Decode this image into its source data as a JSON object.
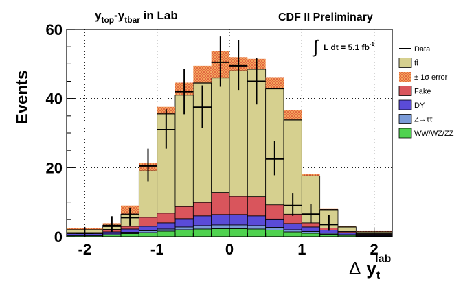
{
  "chart_data": {
    "type": "bar",
    "stacked": true,
    "title": "y_top-y_tbar in Lab",
    "title_parts": {
      "main1": "y",
      "sub1": "top",
      "dash": "-y",
      "sub2": "tbar",
      "rest": " in Lab"
    },
    "corner_label": "CDF II Preliminary",
    "luminosity": {
      "integral": "∫",
      "text": "L dt = 5.1 fb",
      "sup": "-1"
    },
    "ylabel": "Events",
    "xlabel": "Δ y_t^lab",
    "xlabel_parts": {
      "delta": "Δ",
      "y": "y",
      "sub": "t",
      "sup": "lab"
    },
    "xlim": [
      -2.25,
      2.25
    ],
    "ylim": [
      0,
      60
    ],
    "x_ticks": [
      -2,
      -1,
      0,
      1,
      2
    ],
    "x_tick_labels": [
      "-2",
      "-1",
      "0",
      "1",
      "2"
    ],
    "y_ticks": [
      0,
      20,
      40,
      60
    ],
    "y_tick_labels": [
      "0",
      "20",
      "40",
      "60"
    ],
    "grid": true,
    "legend_position": "right",
    "bin_edges": [
      -2.25,
      -1.75,
      -1.5,
      -1.25,
      -1.0,
      -0.75,
      -0.5,
      -0.25,
      0.0,
      0.25,
      0.5,
      0.75,
      1.0,
      1.25,
      1.5,
      1.75,
      2.25
    ],
    "legend": [
      {
        "label": "Data",
        "symbol": "line"
      },
      {
        "label": "tt̄",
        "symbol": "box"
      },
      {
        "label": "± 1σ error",
        "symbol": "hatch"
      },
      {
        "label": "Fake",
        "symbol": "box"
      },
      {
        "label": "DY",
        "symbol": "box"
      },
      {
        "label": "Z→ττ",
        "symbol": "box"
      },
      {
        "label": "WW/WZ/ZZ",
        "symbol": "box"
      }
    ],
    "colors": {
      "ttbar": "#d6d08f",
      "fake": "#d9555c",
      "dy": "#5a4bd8",
      "ztautau": "#7a9bd8",
      "diboson": "#4fd24f",
      "error_hatch": "#cc2222",
      "error_fill": "#f4a45c",
      "data": "#000000"
    },
    "series": [
      {
        "name": "WW/WZ/ZZ",
        "values": [
          0.3,
          0.5,
          0.9,
          1.2,
          1.6,
          2.0,
          2.2,
          2.3,
          2.3,
          2.2,
          1.9,
          1.4,
          1.0,
          0.7,
          0.4,
          0.2
        ]
      },
      {
        "name": "Z→ττ",
        "values": [
          0.2,
          0.3,
          0.4,
          0.5,
          0.6,
          0.8,
          1.0,
          1.1,
          1.1,
          1.0,
          0.8,
          0.6,
          0.5,
          0.3,
          0.2,
          0.1
        ]
      },
      {
        "name": "DY",
        "values": [
          0.4,
          0.6,
          0.9,
          1.3,
          1.8,
          2.4,
          2.8,
          3.0,
          3.0,
          2.8,
          2.4,
          1.8,
          1.3,
          0.9,
          0.6,
          0.4
        ]
      },
      {
        "name": "Fake",
        "values": [
          0.3,
          0.7,
          0.8,
          2.6,
          2.8,
          3.5,
          3.9,
          6.4,
          5.3,
          5.6,
          4.1,
          2.7,
          1.2,
          0.6,
          0.3,
          0.2
        ]
      },
      {
        "name": "tt̄",
        "values": [
          0.8,
          1.2,
          3.5,
          13.4,
          28.8,
          32.3,
          34.6,
          33.2,
          36.3,
          36.9,
          33.6,
          27.3,
          13.6,
          5.3,
          1.3,
          0.5
        ]
      }
    ],
    "error_band": {
      "lower": [
        2.0,
        3.3,
        6.5,
        19.0,
        35.6,
        41.0,
        44.5,
        46.0,
        48.0,
        48.5,
        42.8,
        33.8,
        17.6,
        7.8,
        2.8,
        1.4
      ],
      "upper": [
        2.5,
        3.9,
        9.0,
        21.3,
        37.6,
        44.6,
        49.5,
        53.8,
        52.0,
        51.5,
        46.2,
        36.6,
        18.2,
        8.2,
        3.1,
        1.6
      ],
      "total": [
        2.0,
        3.3,
        6.5,
        19.0,
        35.6,
        41.0,
        44.5,
        46.0,
        48.0,
        48.5,
        42.8,
        33.8,
        17.6,
        7.8,
        2.8,
        1.4
      ]
    },
    "data_points": [
      {
        "x": -2.0,
        "y": 1,
        "xerr": 0.125,
        "yerr": [
          1,
          1.8
        ]
      },
      {
        "x": -1.625,
        "y": 3,
        "xerr": 0.125,
        "yerr": [
          1.7,
          2.9
        ]
      },
      {
        "x": -1.375,
        "y": 5.5,
        "xerr": 0.125,
        "yerr": [
          2.3,
          2.9
        ]
      },
      {
        "x": -1.125,
        "y": 20.5,
        "xerr": 0.125,
        "yerr": [
          4.5,
          5.0
        ]
      },
      {
        "x": -0.875,
        "y": 31,
        "xerr": 0.125,
        "yerr": [
          5.5,
          5.9
        ]
      },
      {
        "x": -0.625,
        "y": 42,
        "xerr": 0.125,
        "yerr": [
          6.5,
          6.6
        ]
      },
      {
        "x": -0.375,
        "y": 37.5,
        "xerr": 0.125,
        "yerr": [
          6.1,
          6.3
        ]
      },
      {
        "x": -0.125,
        "y": 50.5,
        "xerr": 0.125,
        "yerr": [
          7.1,
          7.5
        ]
      },
      {
        "x": 0.125,
        "y": 49.5,
        "xerr": 0.125,
        "yerr": [
          7.0,
          7.4
        ]
      },
      {
        "x": 0.375,
        "y": 45,
        "xerr": 0.125,
        "yerr": [
          6.7,
          6.8
        ]
      },
      {
        "x": 0.625,
        "y": 22.5,
        "xerr": 0.125,
        "yerr": [
          4.7,
          5.2
        ]
      },
      {
        "x": 0.875,
        "y": 9,
        "xerr": 0.125,
        "yerr": [
          3.0,
          3.5
        ]
      },
      {
        "x": 1.125,
        "y": 6.5,
        "xerr": 0.125,
        "yerr": [
          2.5,
          3.0
        ]
      },
      {
        "x": 1.375,
        "y": 3.5,
        "xerr": 0.125,
        "yerr": [
          1.8,
          2.8
        ]
      }
    ]
  }
}
